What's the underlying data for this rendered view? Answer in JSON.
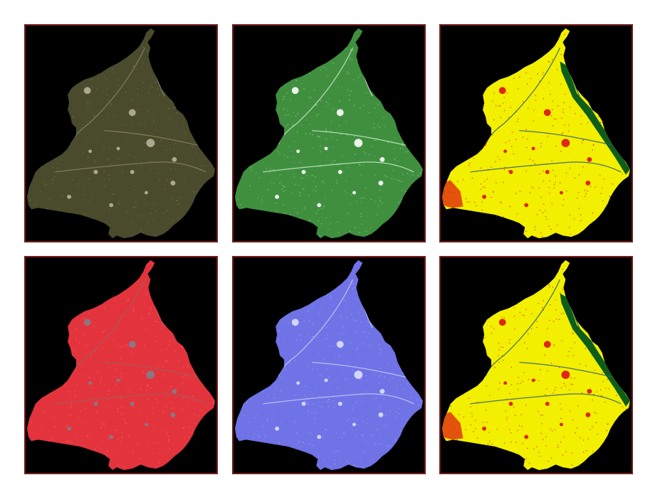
{
  "panels": [
    {
      "id": "p1",
      "name": "true-color-map",
      "fill": "#4a4a2c",
      "fill_light": "#6b6644",
      "road": "#8a8266",
      "city": "#b7b29a",
      "speck": "#7e7a5a"
    },
    {
      "id": "p2",
      "name": "green-band-map",
      "fill": "#3f8f3f",
      "fill_light": "#7dc47d",
      "road": "#c9ebc9",
      "city": "#ffffff",
      "speck": "#a7d9a7"
    },
    {
      "id": "p3",
      "name": "classified-map-a",
      "fill": "#f2ef00",
      "fill_light": "#ffff22",
      "road": "#2d5c6b",
      "city": "#dd1111",
      "speck": "#dd1111",
      "accent": "#0d5e1a"
    },
    {
      "id": "p4",
      "name": "false-color-red-map",
      "fill": "#e3343d",
      "fill_light": "#f25a60",
      "road": "#a55a5a",
      "city": "#7e7e8a",
      "speck": "#ff6f73"
    },
    {
      "id": "p5",
      "name": "blue-band-map",
      "fill": "#6f73e6",
      "fill_light": "#9a9df2",
      "road": "#c8caf8",
      "city": "#dfe0ff",
      "speck": "#a9acf5"
    },
    {
      "id": "p6",
      "name": "classified-map-b",
      "fill": "#f2ef00",
      "fill_light": "#ffff22",
      "road": "#2d5c6b",
      "city": "#dd1111",
      "speck": "#dd1111",
      "accent": "#0d5e1a"
    }
  ]
}
